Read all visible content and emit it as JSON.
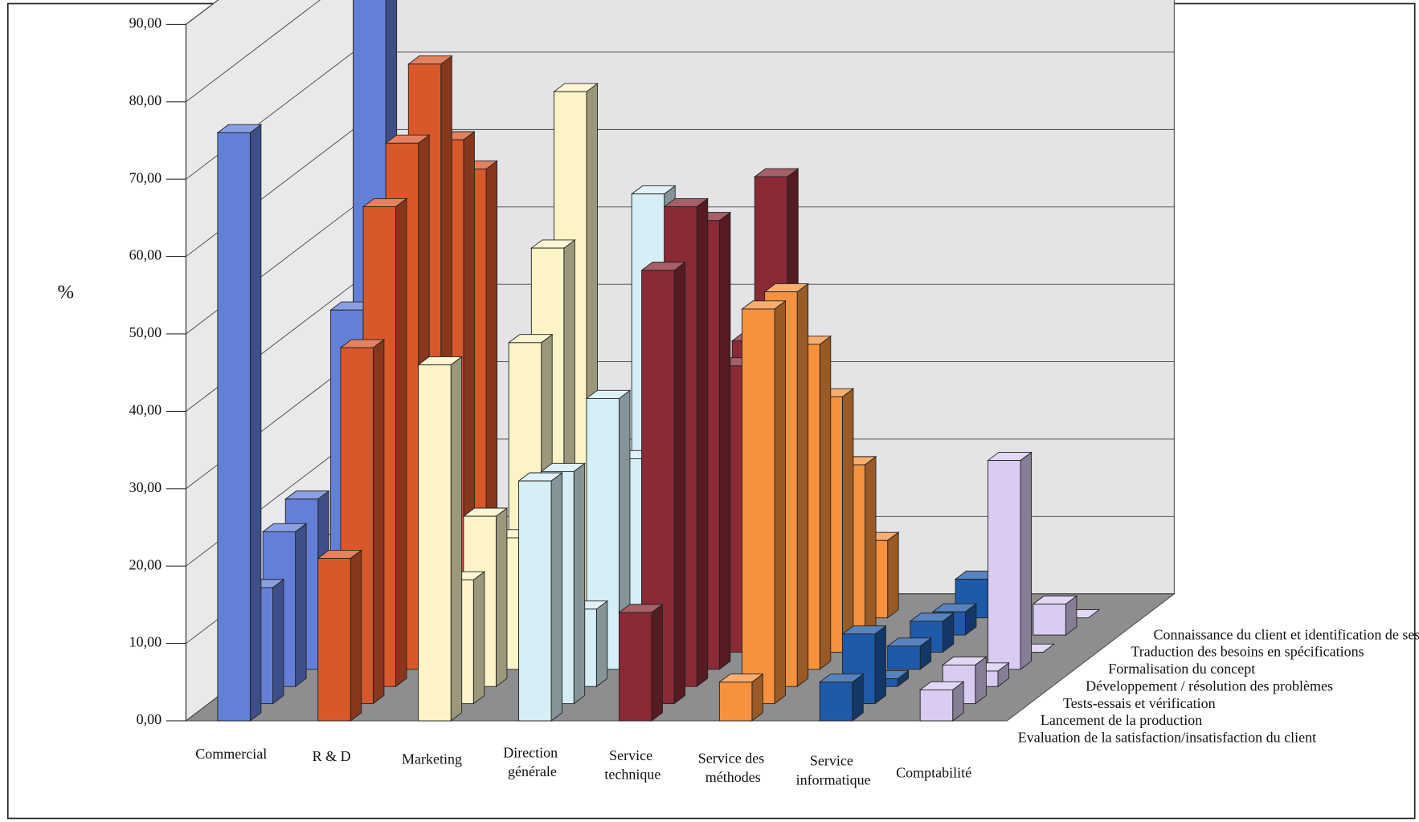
{
  "chart_data": {
    "type": "bar3d",
    "y_label": "%",
    "categories": [
      "Commercial",
      "R & D",
      "Marketing",
      "Direction générale",
      "Service technique",
      "Service des méthodes",
      "Service informatique",
      "Comptabilité"
    ],
    "colors": [
      "#6380d8",
      "#d9582b",
      "#fcf3c6",
      "#d6eef5",
      "#8a2a36",
      "#f7913e",
      "#1f5aa8",
      "#d9cbf2"
    ],
    "series": [
      {
        "name": "Connaissance du client et identification de ses besoins",
        "values": [
          88,
          58,
          68,
          34,
          57,
          10,
          5,
          0
        ]
      },
      {
        "name": "Traduction des besoins en spécifications",
        "values": [
          42,
          64,
          50,
          57,
          38,
          22,
          3,
          4
        ]
      },
      {
        "name": "Formalisation du concept",
        "values": [
          5,
          76,
          40,
          25,
          37,
          33,
          4,
          0
        ]
      },
      {
        "name": "Développement / résolution des problèmes",
        "values": [
          22,
          68,
          17,
          35,
          58,
          42,
          3,
          27
        ]
      },
      {
        "name": "Tests-essais et vérification",
        "values": [
          20,
          62,
          22,
          10,
          62,
          51,
          1,
          2
        ]
      },
      {
        "name": "Lancement de la production",
        "values": [
          15,
          46,
          16,
          30,
          56,
          51,
          9,
          5
        ]
      },
      {
        "name": "Evaluation de la satisfaction/insatisfaction du client",
        "values": [
          76,
          21,
          46,
          31,
          14,
          5,
          5,
          4
        ]
      }
    ],
    "ylim": [
      0,
      90
    ],
    "yticks": [
      {
        "value": 0,
        "label": "0,00"
      },
      {
        "value": 10,
        "label": "10,00"
      },
      {
        "value": 20,
        "label": "20,00"
      },
      {
        "value": 30,
        "label": "30,00"
      },
      {
        "value": 40,
        "label": "40,00"
      },
      {
        "value": 50,
        "label": "50,00"
      },
      {
        "value": 60,
        "label": "60,00"
      },
      {
        "value": 70,
        "label": "70,00"
      },
      {
        "value": 80,
        "label": "80,00"
      },
      {
        "value": 90,
        "label": "90,00"
      }
    ],
    "grid": true
  }
}
